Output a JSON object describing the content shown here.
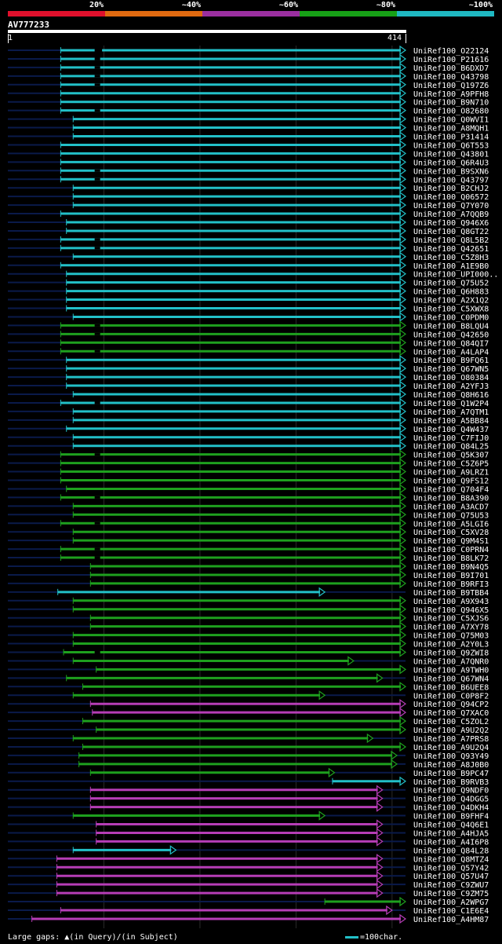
{
  "legend": [
    {
      "label": "20%",
      "color": "#e0102c"
    },
    {
      "label": "~40%",
      "color": "#e06a10"
    },
    {
      "label": "~60%",
      "color": "#9b2fa0"
    },
    {
      "label": "~80%",
      "color": "#17a017"
    },
    {
      "label": "~100%",
      "color": "#1fb8c2"
    }
  ],
  "query": {
    "name": "AV777233",
    "start": "1",
    "end": "414",
    "length": 414
  },
  "colors": {
    "cyan": "#22c0c8",
    "green": "#1ea01e",
    "magenta": "#b63db6",
    "dark": "#0a1a4a",
    "gap": "#ffff66"
  },
  "hits": [
    {
      "name": "UniRef100_O22124",
      "s": 55,
      "e": 414,
      "c": "cyan",
      "gaps": [
        92,
        94
      ]
    },
    {
      "name": "UniRef100_P21616",
      "s": 55,
      "e": 414,
      "c": "cyan",
      "gaps": [
        92
      ]
    },
    {
      "name": "UniRef100_B6DXD7",
      "s": 55,
      "e": 414,
      "c": "cyan",
      "gaps": [
        92
      ]
    },
    {
      "name": "UniRef100_Q43798",
      "s": 55,
      "e": 414,
      "c": "cyan",
      "gaps": [
        92
      ]
    },
    {
      "name": "UniRef100_Q197Z6",
      "s": 55,
      "e": 414,
      "c": "cyan",
      "gaps": [
        92
      ]
    },
    {
      "name": "UniRef100_A9PFH8",
      "s": 55,
      "e": 414,
      "c": "cyan",
      "gaps": []
    },
    {
      "name": "UniRef100_B9N710",
      "s": 55,
      "e": 414,
      "c": "cyan",
      "gaps": []
    },
    {
      "name": "UniRef100_O82680",
      "s": 55,
      "e": 414,
      "c": "cyan",
      "gaps": [
        92
      ]
    },
    {
      "name": "UniRef100_Q0WVI1",
      "s": 68,
      "e": 414,
      "c": "cyan",
      "gaps": []
    },
    {
      "name": "UniRef100_A8MQH1",
      "s": 68,
      "e": 414,
      "c": "cyan",
      "gaps": []
    },
    {
      "name": "UniRef100_P31414",
      "s": 68,
      "e": 414,
      "c": "cyan",
      "gaps": []
    },
    {
      "name": "UniRef100_Q6T553",
      "s": 55,
      "e": 414,
      "c": "cyan",
      "gaps": []
    },
    {
      "name": "UniRef100_Q43801",
      "s": 55,
      "e": 414,
      "c": "cyan",
      "gaps": []
    },
    {
      "name": "UniRef100_Q6R4U3",
      "s": 55,
      "e": 414,
      "c": "cyan",
      "gaps": []
    },
    {
      "name": "UniRef100_B9SXN6",
      "s": 55,
      "e": 414,
      "c": "cyan",
      "gaps": [
        92
      ]
    },
    {
      "name": "UniRef100_Q43797",
      "s": 55,
      "e": 414,
      "c": "cyan",
      "gaps": [
        92
      ]
    },
    {
      "name": "UniRef100_B2CHJ2",
      "s": 68,
      "e": 414,
      "c": "cyan",
      "gaps": []
    },
    {
      "name": "UniRef100_Q06572",
      "s": 68,
      "e": 414,
      "c": "cyan",
      "gaps": []
    },
    {
      "name": "UniRef100_Q7Y070",
      "s": 68,
      "e": 414,
      "c": "cyan",
      "gaps": []
    },
    {
      "name": "UniRef100_A7QQB9",
      "s": 55,
      "e": 414,
      "c": "cyan",
      "gaps": []
    },
    {
      "name": "UniRef100_Q946X6",
      "s": 61,
      "e": 414,
      "c": "cyan",
      "gaps": []
    },
    {
      "name": "UniRef100_Q8GT22",
      "s": 61,
      "e": 414,
      "c": "cyan",
      "gaps": []
    },
    {
      "name": "UniRef100_Q8L5B2",
      "s": 55,
      "e": 414,
      "c": "cyan",
      "gaps": [
        92
      ]
    },
    {
      "name": "UniRef100_Q42651",
      "s": 55,
      "e": 414,
      "c": "cyan",
      "gaps": [
        92
      ]
    },
    {
      "name": "UniRef100_C5Z8H3",
      "s": 68,
      "e": 414,
      "c": "cyan",
      "gaps": []
    },
    {
      "name": "UniRef100_A1E9B0",
      "s": 55,
      "e": 414,
      "c": "cyan",
      "gaps": []
    },
    {
      "name": "UniRef100_UPI000..",
      "s": 61,
      "e": 414,
      "c": "cyan",
      "gaps": []
    },
    {
      "name": "UniRef100_Q75U52",
      "s": 61,
      "e": 414,
      "c": "cyan",
      "gaps": []
    },
    {
      "name": "UniRef100_Q6H883",
      "s": 61,
      "e": 414,
      "c": "cyan",
      "gaps": []
    },
    {
      "name": "UniRef100_A2X1Q2",
      "s": 61,
      "e": 414,
      "c": "cyan",
      "gaps": []
    },
    {
      "name": "UniRef100_C5XWX8",
      "s": 61,
      "e": 414,
      "c": "cyan",
      "gaps": []
    },
    {
      "name": "UniRef100_C0PDM0",
      "s": 68,
      "e": 414,
      "c": "cyan",
      "gaps": []
    },
    {
      "name": "UniRef100_B8LQU4",
      "s": 55,
      "e": 414,
      "c": "green",
      "gaps": [
        92
      ]
    },
    {
      "name": "UniRef100_Q42650",
      "s": 55,
      "e": 414,
      "c": "green",
      "gaps": [
        92
      ]
    },
    {
      "name": "UniRef100_Q84QI7",
      "s": 55,
      "e": 414,
      "c": "green",
      "gaps": []
    },
    {
      "name": "UniRef100_A4LAP4",
      "s": 55,
      "e": 414,
      "c": "green",
      "gaps": [
        92
      ]
    },
    {
      "name": "UniRef100_B9FQ61",
      "s": 61,
      "e": 414,
      "c": "cyan",
      "gaps": []
    },
    {
      "name": "UniRef100_Q67WN5",
      "s": 61,
      "e": 414,
      "c": "cyan",
      "gaps": []
    },
    {
      "name": "UniRef100_O80384",
      "s": 61,
      "e": 414,
      "c": "cyan",
      "gaps": []
    },
    {
      "name": "UniRef100_A2YFJ3",
      "s": 61,
      "e": 414,
      "c": "cyan",
      "gaps": []
    },
    {
      "name": "UniRef100_Q8H616",
      "s": 68,
      "e": 414,
      "c": "cyan",
      "gaps": []
    },
    {
      "name": "UniRef100_Q1W2P4",
      "s": 55,
      "e": 414,
      "c": "cyan",
      "gaps": [
        92
      ]
    },
    {
      "name": "UniRef100_A7QTM1",
      "s": 68,
      "e": 414,
      "c": "cyan",
      "gaps": []
    },
    {
      "name": "UniRef100_A5BB84",
      "s": 68,
      "e": 414,
      "c": "cyan",
      "gaps": []
    },
    {
      "name": "UniRef100_Q4W437",
      "s": 61,
      "e": 414,
      "c": "cyan",
      "gaps": []
    },
    {
      "name": "UniRef100_C7FIJ0",
      "s": 68,
      "e": 414,
      "c": "cyan",
      "gaps": []
    },
    {
      "name": "UniRef100_Q84L25",
      "s": 68,
      "e": 414,
      "c": "cyan",
      "gaps": []
    },
    {
      "name": "UniRef100_Q5K307",
      "s": 55,
      "e": 414,
      "c": "green",
      "gaps": [
        92
      ]
    },
    {
      "name": "UniRef100_C5Z6P5",
      "s": 55,
      "e": 414,
      "c": "green",
      "gaps": []
    },
    {
      "name": "UniRef100_A9LRZ1",
      "s": 55,
      "e": 414,
      "c": "green",
      "gaps": []
    },
    {
      "name": "UniRef100_Q9FS12",
      "s": 55,
      "e": 414,
      "c": "green",
      "gaps": []
    },
    {
      "name": "UniRef100_Q704F4",
      "s": 61,
      "e": 414,
      "c": "green",
      "gaps": []
    },
    {
      "name": "UniRef100_B8A390",
      "s": 55,
      "e": 414,
      "c": "green",
      "gaps": [
        92
      ]
    },
    {
      "name": "UniRef100_A3ACD7",
      "s": 68,
      "e": 414,
      "c": "green",
      "gaps": []
    },
    {
      "name": "UniRef100_Q75U53",
      "s": 68,
      "e": 414,
      "c": "green",
      "gaps": []
    },
    {
      "name": "UniRef100_A5LGI6",
      "s": 55,
      "e": 414,
      "c": "green",
      "gaps": [
        92
      ]
    },
    {
      "name": "UniRef100_C5XV28",
      "s": 68,
      "e": 414,
      "c": "green",
      "gaps": []
    },
    {
      "name": "UniRef100_Q9M4S1",
      "s": 68,
      "e": 414,
      "c": "green",
      "gaps": []
    },
    {
      "name": "UniRef100_C0PRN4",
      "s": 55,
      "e": 414,
      "c": "green",
      "gaps": [
        92
      ]
    },
    {
      "name": "UniRef100_B8LK72",
      "s": 55,
      "e": 414,
      "c": "green",
      "gaps": [
        92
      ]
    },
    {
      "name": "UniRef100_B9N4Q5",
      "s": 86,
      "e": 414,
      "c": "green",
      "gaps": []
    },
    {
      "name": "UniRef100_B9I701",
      "s": 86,
      "e": 414,
      "c": "green",
      "gaps": []
    },
    {
      "name": "UniRef100_B9RFI3",
      "s": 86,
      "e": 414,
      "c": "green",
      "gaps": []
    },
    {
      "name": "UniRef100_B9TBB4",
      "s": 52,
      "e": 330,
      "c": "cyan",
      "gaps": []
    },
    {
      "name": "UniRef100_A9X943",
      "s": 68,
      "e": 414,
      "c": "green",
      "gaps": []
    },
    {
      "name": "UniRef100_Q946X5",
      "s": 68,
      "e": 414,
      "c": "green",
      "gaps": []
    },
    {
      "name": "UniRef100_C5XJS6",
      "s": 86,
      "e": 414,
      "c": "green",
      "gaps": []
    },
    {
      "name": "UniRef100_A7XY78",
      "s": 86,
      "e": 414,
      "c": "green",
      "gaps": []
    },
    {
      "name": "UniRef100_Q75M03",
      "s": 68,
      "e": 414,
      "c": "green",
      "gaps": []
    },
    {
      "name": "UniRef100_A2Y0L3",
      "s": 68,
      "e": 414,
      "c": "green",
      "gaps": []
    },
    {
      "name": "UniRef100_Q9ZWI8",
      "s": 58,
      "e": 414,
      "c": "green",
      "gaps": [
        92
      ]
    },
    {
      "name": "UniRef100_A7QNR0",
      "s": 68,
      "e": 360,
      "c": "green",
      "gaps": []
    },
    {
      "name": "UniRef100_A9TWH0",
      "s": 92,
      "e": 414,
      "c": "green",
      "gaps": []
    },
    {
      "name": "UniRef100_Q67WN4",
      "s": 61,
      "e": 390,
      "c": "green",
      "gaps": []
    },
    {
      "name": "UniRef100_B6UEE8",
      "s": 78,
      "e": 414,
      "c": "green",
      "gaps": []
    },
    {
      "name": "UniRef100_C0P8F2",
      "s": 68,
      "e": 330,
      "c": "green",
      "gaps": []
    },
    {
      "name": "UniRef100_Q94CP2",
      "s": 86,
      "e": 414,
      "c": "magenta",
      "gaps": []
    },
    {
      "name": "UniRef100_Q7XAC0",
      "s": 88,
      "e": 414,
      "c": "magenta",
      "gaps": []
    },
    {
      "name": "UniRef100_C5ZOL2",
      "s": 78,
      "e": 414,
      "c": "green",
      "gaps": []
    },
    {
      "name": "UniRef100_A9U2Q2",
      "s": 92,
      "e": 414,
      "c": "green",
      "gaps": []
    },
    {
      "name": "UniRef100_A7PRS8",
      "s": 68,
      "e": 380,
      "c": "green",
      "gaps": []
    },
    {
      "name": "UniRef100_A9U2Q4",
      "s": 78,
      "e": 414,
      "c": "green",
      "gaps": []
    },
    {
      "name": "UniRef100_Q93Y49",
      "s": 74,
      "e": 405,
      "c": "green",
      "gaps": []
    },
    {
      "name": "UniRef100_A8J0B0",
      "s": 74,
      "e": 405,
      "c": "green",
      "gaps": []
    },
    {
      "name": "UniRef100_B9PC47",
      "s": 86,
      "e": 340,
      "c": "green",
      "gaps": []
    },
    {
      "name": "UniRef100_B9RVB3",
      "s": 338,
      "e": 414,
      "c": "cyan",
      "gaps": []
    },
    {
      "name": "UniRef100_Q9NDF0",
      "s": 86,
      "e": 390,
      "c": "magenta",
      "gaps": []
    },
    {
      "name": "UniRef100_Q4DGG5",
      "s": 86,
      "e": 390,
      "c": "magenta",
      "gaps": []
    },
    {
      "name": "UniRef100_Q4DKH4",
      "s": 86,
      "e": 390,
      "c": "magenta",
      "gaps": []
    },
    {
      "name": "UniRef100_B9FHF4",
      "s": 68,
      "e": 330,
      "c": "green",
      "gaps": []
    },
    {
      "name": "UniRef100_Q4Q6E1",
      "s": 92,
      "e": 390,
      "c": "magenta",
      "gaps": []
    },
    {
      "name": "UniRef100_A4HJA5",
      "s": 92,
      "e": 390,
      "c": "magenta",
      "gaps": []
    },
    {
      "name": "UniRef100_A4I6P8",
      "s": 92,
      "e": 390,
      "c": "magenta",
      "gaps": []
    },
    {
      "name": "UniRef100_Q84L28",
      "s": 68,
      "e": 175,
      "c": "cyan",
      "gaps": []
    },
    {
      "name": "UniRef100_Q8MTZ4",
      "s": 51,
      "e": 390,
      "c": "magenta",
      "gaps": []
    },
    {
      "name": "UniRef100_Q57Y42",
      "s": 51,
      "e": 390,
      "c": "magenta",
      "gaps": []
    },
    {
      "name": "UniRef100_Q57U47",
      "s": 51,
      "e": 390,
      "c": "magenta",
      "gaps": []
    },
    {
      "name": "UniRef100_C9ZWU7",
      "s": 51,
      "e": 390,
      "c": "magenta",
      "gaps": []
    },
    {
      "name": "UniRef100_C9ZM75",
      "s": 51,
      "e": 390,
      "c": "magenta",
      "gaps": []
    },
    {
      "name": "UniRef100_A2WPG7",
      "s": 330,
      "e": 414,
      "c": "green",
      "gaps": []
    },
    {
      "name": "UniRef100_C1E6E4",
      "s": 55,
      "e": 400,
      "c": "magenta",
      "gaps": []
    },
    {
      "name": "UniRef100_A4HM87",
      "s": 25,
      "e": 414,
      "c": "magenta",
      "gaps": []
    }
  ],
  "footer": {
    "gaps_label": "Large gaps:",
    "query_gap": "(in Query)/",
    "subject_gap": "(in Subject)",
    "scale_label": "=100char."
  }
}
